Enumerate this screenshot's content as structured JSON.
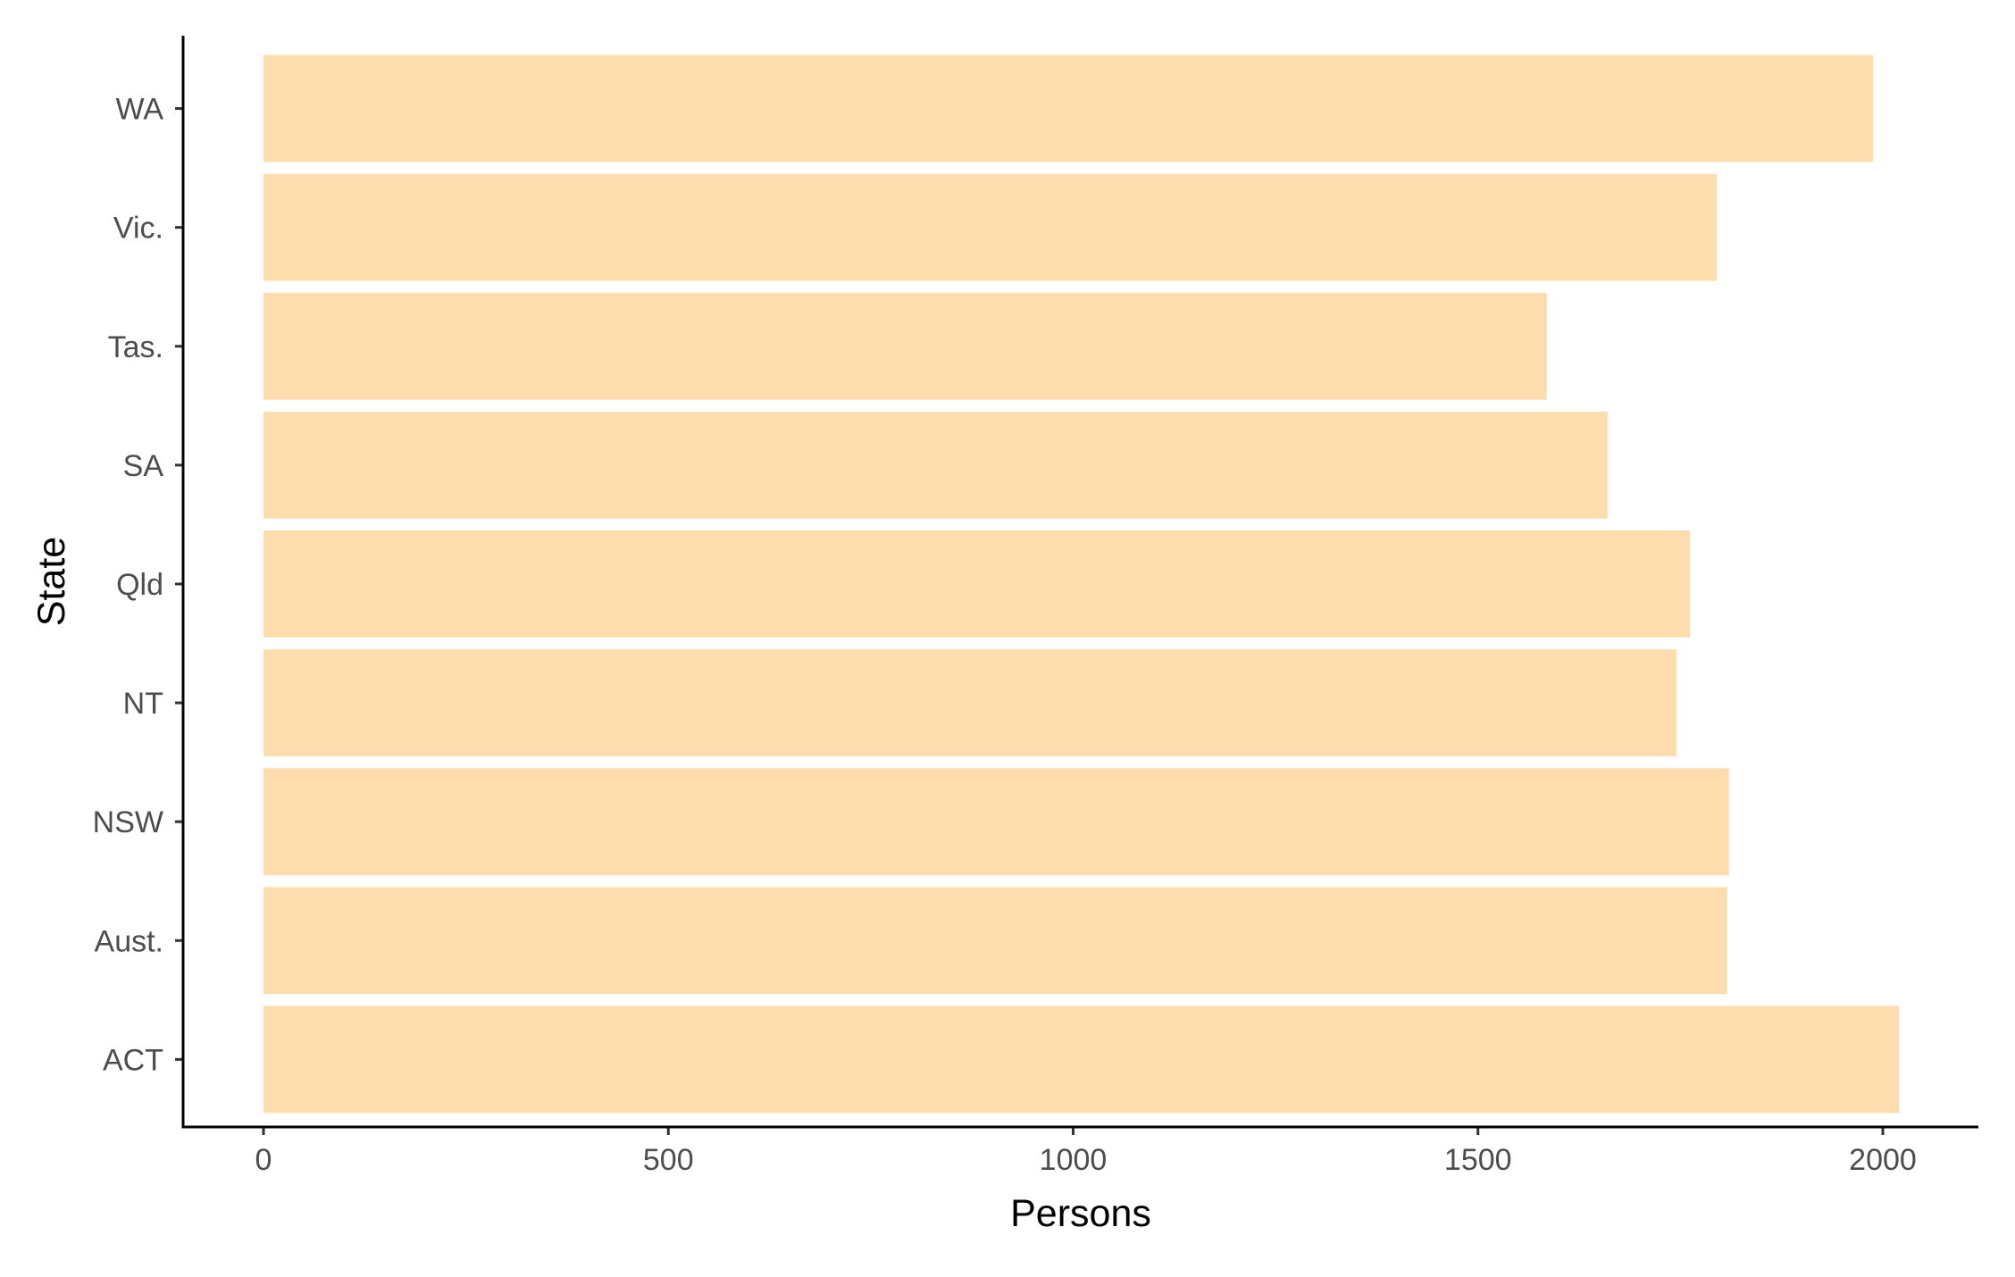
{
  "chart_data": {
    "type": "bar",
    "orientation": "horizontal",
    "categories": [
      "ACT",
      "Aust.",
      "NSW",
      "NT",
      "Qld",
      "SA",
      "Tas.",
      "Vic.",
      "WA"
    ],
    "values": [
      2020,
      1808,
      1810,
      1745,
      1762,
      1660,
      1585,
      1795,
      1988
    ],
    "xlabel": "Persons",
    "ylabel": "State",
    "x_ticks": [
      0,
      500,
      1000,
      1500,
      2000
    ],
    "xlim": [
      -100,
      2120
    ],
    "grid": false,
    "legend": "none",
    "bar_color": "#FDDDAD",
    "axis_color": "#000000",
    "tick_label_color": "#4d4d4d"
  }
}
